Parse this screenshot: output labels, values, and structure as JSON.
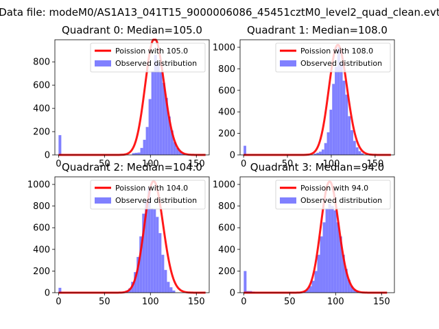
{
  "figure": {
    "title": "Data file: modeM0/AS1A13_041T15_9000006086_45451cztM0_level2_quad_clean.evt"
  },
  "colors": {
    "hist": "#8080ff",
    "poisson": "#ff0000",
    "axis": "#000000"
  },
  "chart_data": [
    {
      "type": "histogram+line",
      "title": "Quadrant 0: Median=105.0",
      "median": 105.0,
      "legend": [
        "Poission with 105.0",
        "Observed distribution"
      ],
      "legend_position": "top-right",
      "xlim": [
        -4,
        164
      ],
      "ylim": [
        0,
        990
      ],
      "xticks": [
        0,
        50,
        100,
        150
      ],
      "yticks": [
        0,
        200,
        400,
        600,
        800
      ],
      "bins": [
        [
          0,
          3,
          170
        ],
        [
          80,
          83,
          15
        ],
        [
          83,
          86,
          18
        ],
        [
          86,
          89,
          20
        ],
        [
          89,
          92,
          60
        ],
        [
          92,
          95,
          130
        ],
        [
          95,
          98,
          240
        ],
        [
          98,
          101,
          480
        ],
        [
          101,
          104,
          720
        ],
        [
          104,
          107,
          860
        ],
        [
          107,
          110,
          790
        ],
        [
          110,
          113,
          710
        ],
        [
          113,
          116,
          620
        ],
        [
          116,
          119,
          490
        ],
        [
          119,
          122,
          330
        ],
        [
          122,
          125,
          210
        ],
        [
          125,
          128,
          110
        ],
        [
          128,
          131,
          60
        ],
        [
          131,
          134,
          30
        ],
        [
          134,
          137,
          15
        ]
      ],
      "poisson_lambda": 105.0,
      "poisson_total": 25800,
      "poisson_x": [
        0,
        160
      ]
    },
    {
      "type": "histogram+line",
      "title": "Quadrant 1: Median=108.0",
      "median": 108.0,
      "legend": [
        "Poission with 108.0",
        "Observed distribution"
      ],
      "legend_position": "top-right",
      "xlim": [
        -4,
        172
      ],
      "ylim": [
        0,
        1070
      ],
      "xticks": [
        0,
        50,
        100,
        150
      ],
      "yticks": [
        0,
        200,
        400,
        600,
        800,
        1000
      ],
      "bins": [
        [
          0,
          3,
          85
        ],
        [
          80,
          83,
          12
        ],
        [
          83,
          86,
          20
        ],
        [
          86,
          89,
          30
        ],
        [
          89,
          92,
          50
        ],
        [
          92,
          95,
          110
        ],
        [
          95,
          98,
          210
        ],
        [
          98,
          101,
          420
        ],
        [
          101,
          104,
          660
        ],
        [
          104,
          107,
          820
        ],
        [
          107,
          110,
          1000
        ],
        [
          110,
          113,
          860
        ],
        [
          113,
          116,
          690
        ],
        [
          116,
          119,
          560
        ],
        [
          119,
          122,
          360
        ],
        [
          122,
          125,
          230
        ],
        [
          125,
          128,
          130
        ],
        [
          128,
          131,
          70
        ],
        [
          131,
          134,
          35
        ],
        [
          134,
          137,
          15
        ]
      ],
      "poisson_lambda": 108.0,
      "poisson_total": 26650,
      "poisson_x": [
        0,
        168
      ]
    },
    {
      "type": "histogram+line",
      "title": "Quadrant 2: Median=104.0",
      "median": 104.0,
      "legend": [
        "Poission with 104.0",
        "Observed distribution"
      ],
      "legend_position": "top-right",
      "xlim": [
        -4,
        164
      ],
      "ylim": [
        0,
        1070
      ],
      "xticks": [
        0,
        50,
        100,
        150
      ],
      "yticks": [
        0,
        200,
        400,
        600,
        800,
        1000
      ],
      "bins": [
        [
          0,
          3,
          45
        ],
        [
          70,
          73,
          10
        ],
        [
          73,
          76,
          20
        ],
        [
          76,
          79,
          40
        ],
        [
          79,
          82,
          100
        ],
        [
          82,
          85,
          190
        ],
        [
          85,
          88,
          330
        ],
        [
          88,
          91,
          520
        ],
        [
          91,
          94,
          730
        ],
        [
          94,
          97,
          850
        ],
        [
          97,
          100,
          970
        ],
        [
          100,
          103,
          780
        ],
        [
          103,
          106,
          770
        ],
        [
          106,
          109,
          700
        ],
        [
          109,
          112,
          550
        ],
        [
          112,
          115,
          350
        ],
        [
          115,
          118,
          210
        ],
        [
          118,
          121,
          100
        ],
        [
          121,
          124,
          50
        ],
        [
          124,
          127,
          20
        ]
      ],
      "poisson_lambda": 104.0,
      "poisson_total": 26350,
      "poisson_x": [
        0,
        160
      ]
    },
    {
      "type": "histogram+line",
      "title": "Quadrant 3: Median=94.0",
      "median": 94.0,
      "legend": [
        "Poission with 94.0",
        "Observed distribution"
      ],
      "legend_position": "top-right",
      "xlim": [
        -4,
        164
      ],
      "ylim": [
        0,
        1070
      ],
      "xticks": [
        0,
        50,
        100,
        150
      ],
      "yticks": [
        0,
        200,
        400,
        600,
        800,
        1000
      ],
      "bins": [
        [
          0,
          3,
          200
        ],
        [
          3,
          6,
          15
        ],
        [
          6,
          9,
          15
        ],
        [
          9,
          12,
          10
        ],
        [
          65,
          68,
          15
        ],
        [
          68,
          71,
          30
        ],
        [
          71,
          74,
          60
        ],
        [
          74,
          77,
          110
        ],
        [
          77,
          80,
          200
        ],
        [
          80,
          83,
          350
        ],
        [
          83,
          86,
          520
        ],
        [
          86,
          89,
          650
        ],
        [
          89,
          92,
          780
        ],
        [
          92,
          95,
          820
        ],
        [
          95,
          98,
          800
        ],
        [
          98,
          101,
          760
        ],
        [
          101,
          104,
          650
        ],
        [
          104,
          107,
          520
        ],
        [
          107,
          110,
          350
        ],
        [
          110,
          113,
          220
        ],
        [
          113,
          116,
          120
        ],
        [
          116,
          119,
          60
        ],
        [
          119,
          122,
          30
        ],
        [
          122,
          125,
          15
        ]
      ],
      "poisson_lambda": 94.0,
      "poisson_total": 24950,
      "poisson_x": [
        0,
        156
      ]
    }
  ]
}
